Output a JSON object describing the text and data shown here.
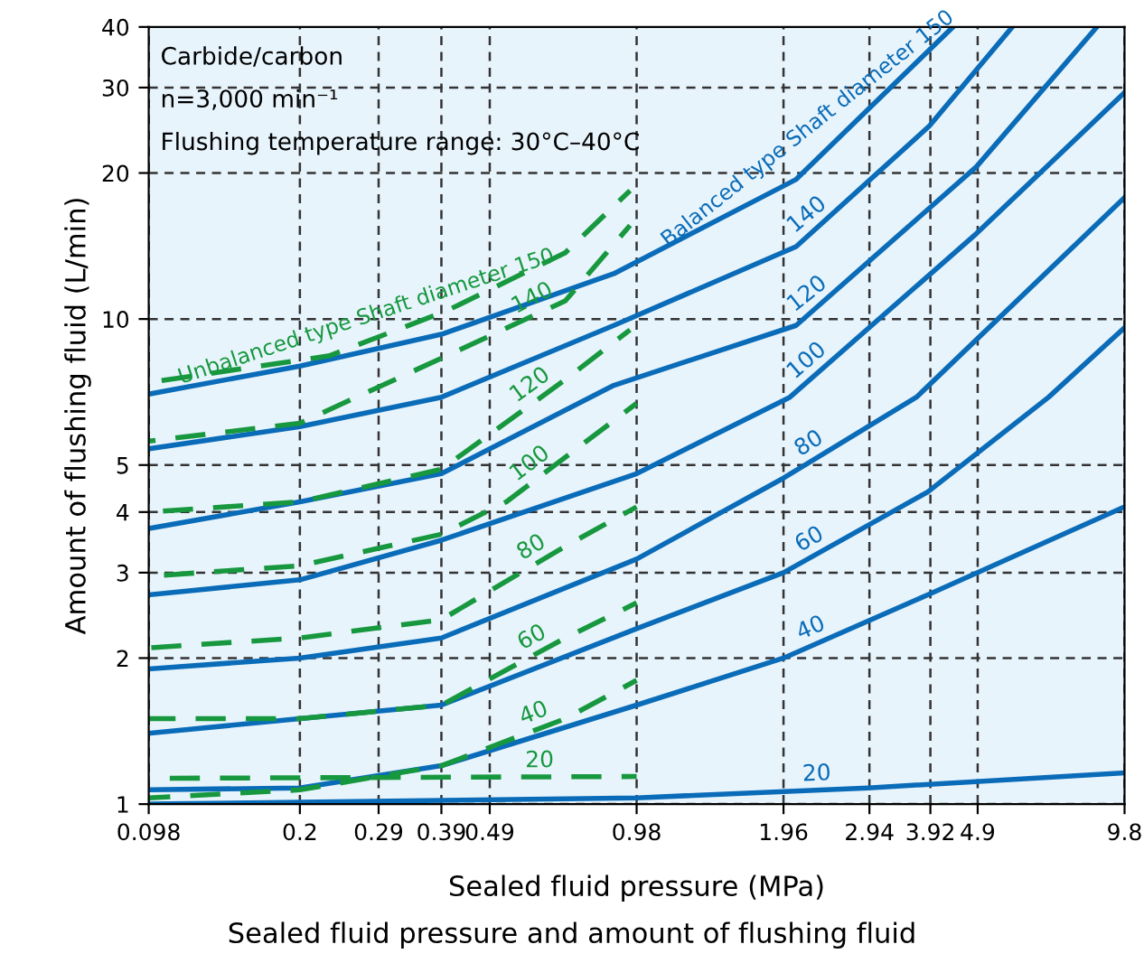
{
  "chart_data": {
    "type": "line",
    "title": "Sealed fluid pressure and amount of flushing fluid",
    "xlabel": "Sealed fluid pressure (MPa)",
    "ylabel": "Amount of flushing fluid (L/min)",
    "annotations": [
      "Carbide/carbon",
      "n=3,000 min⁻¹",
      "Flushing temperature range: 30°C–40°C"
    ],
    "log": "xy",
    "grid": true,
    "legend": false,
    "marker": "none",
    "xlim": [
      0.098,
      9.8
    ],
    "ylim": [
      1,
      40
    ],
    "xticks": [
      0.098,
      0.2,
      0.29,
      0.39,
      0.49,
      0.98,
      1.96,
      2.94,
      3.92,
      4.9,
      9.8
    ],
    "yticks": [
      1,
      2,
      3,
      4,
      5,
      10,
      20,
      30,
      40
    ],
    "series": [
      {
        "name": "Balanced type Shaft diameter 150",
        "color": "#0a6cb8",
        "line_style": "solid",
        "x": [
          0.098,
          0.2,
          0.39,
          0.88,
          2.08,
          4.36
        ],
        "values": [
          7.0,
          8.0,
          9.3,
          12.4,
          19.4,
          40
        ]
      },
      {
        "name": "140",
        "color": "#0a6cb8",
        "line_style": "solid",
        "x": [
          0.098,
          0.2,
          0.39,
          0.88,
          2.08,
          3.9,
          5.77
        ],
        "values": [
          5.4,
          6.0,
          6.9,
          9.7,
          14.1,
          25,
          40
        ]
      },
      {
        "name": "120",
        "color": "#0a6cb8",
        "line_style": "solid",
        "x": [
          0.098,
          0.2,
          0.39,
          0.88,
          2.08,
          4.87,
          8.6
        ],
        "values": [
          3.7,
          4.2,
          4.8,
          7.3,
          9.7,
          20.6,
          40
        ]
      },
      {
        "name": "100",
        "color": "#0a6cb8",
        "line_style": "solid",
        "x": [
          0.098,
          0.2,
          0.39,
          0.98,
          2.02,
          4.87,
          9.8
        ],
        "values": [
          2.7,
          2.9,
          3.5,
          4.8,
          6.9,
          15.0,
          29.3
        ]
      },
      {
        "name": "80",
        "color": "#0a6cb8",
        "line_style": "solid",
        "x": [
          0.098,
          0.2,
          0.39,
          0.98,
          1.96,
          3.67,
          9.8
        ],
        "values": [
          1.9,
          2.0,
          2.2,
          3.2,
          4.7,
          6.9,
          17.8
        ]
      },
      {
        "name": "60",
        "color": "#0a6cb8",
        "line_style": "solid",
        "x": [
          0.098,
          0.2,
          0.39,
          0.98,
          1.96,
          3.87,
          6.85,
          9.8
        ],
        "values": [
          1.4,
          1.5,
          1.6,
          2.3,
          3.0,
          4.4,
          6.9,
          9.6
        ]
      },
      {
        "name": "40",
        "color": "#0a6cb8",
        "line_style": "solid",
        "x": [
          0.098,
          0.2,
          0.39,
          0.98,
          1.96,
          3.87,
          9.8
        ],
        "values": [
          1.07,
          1.08,
          1.2,
          1.6,
          2.0,
          2.7,
          4.1
        ]
      },
      {
        "name": "20",
        "color": "#0a6cb8",
        "line_style": "solid",
        "x": [
          0.098,
          0.98,
          2.92,
          9.8
        ],
        "values": [
          1.0,
          1.03,
          1.08,
          1.16
        ]
      },
      {
        "name": "Unbalanced type Shaft diameter 150",
        "color": "#17983f",
        "line_style": "dashed",
        "x": [
          0.098,
          0.23,
          0.4,
          0.7,
          0.95
        ],
        "values": [
          7.4,
          8.4,
          10.4,
          13.7,
          18.4
        ]
      },
      {
        "name": "140",
        "color": "#17983f",
        "line_style": "dashed",
        "x": [
          0.098,
          0.2,
          0.4,
          0.7,
          0.95
        ],
        "values": [
          5.6,
          6.1,
          8.4,
          10.9,
          15.6
        ]
      },
      {
        "name": "120",
        "color": "#17983f",
        "line_style": "dashed",
        "x": [
          0.098,
          0.2,
          0.39,
          0.7,
          0.95
        ],
        "values": [
          4.0,
          4.2,
          4.9,
          7.5,
          9.5
        ]
      },
      {
        "name": "100",
        "color": "#17983f",
        "line_style": "dashed",
        "x": [
          0.098,
          0.2,
          0.39,
          0.53,
          0.98
        ],
        "values": [
          2.95,
          3.1,
          3.6,
          4.2,
          6.7
        ]
      },
      {
        "name": "80",
        "color": "#17983f",
        "line_style": "dashed",
        "x": [
          0.098,
          0.2,
          0.39,
          0.7,
          0.98
        ],
        "values": [
          2.1,
          2.2,
          2.4,
          3.4,
          4.1
        ]
      },
      {
        "name": "60",
        "color": "#17983f",
        "line_style": "dashed",
        "x": [
          0.098,
          0.2,
          0.39,
          0.7,
          0.98
        ],
        "values": [
          1.5,
          1.5,
          1.6,
          2.2,
          2.6
        ]
      },
      {
        "name": "40",
        "color": "#17983f",
        "line_style": "dashed",
        "x": [
          0.098,
          0.2,
          0.39,
          0.7,
          0.98
        ],
        "values": [
          1.03,
          1.07,
          1.2,
          1.5,
          1.8
        ]
      },
      {
        "name": "20",
        "color": "#17983f",
        "line_style": "dashed",
        "x": [
          0.098,
          0.98
        ],
        "values": [
          1.13,
          1.14
        ]
      }
    ]
  }
}
